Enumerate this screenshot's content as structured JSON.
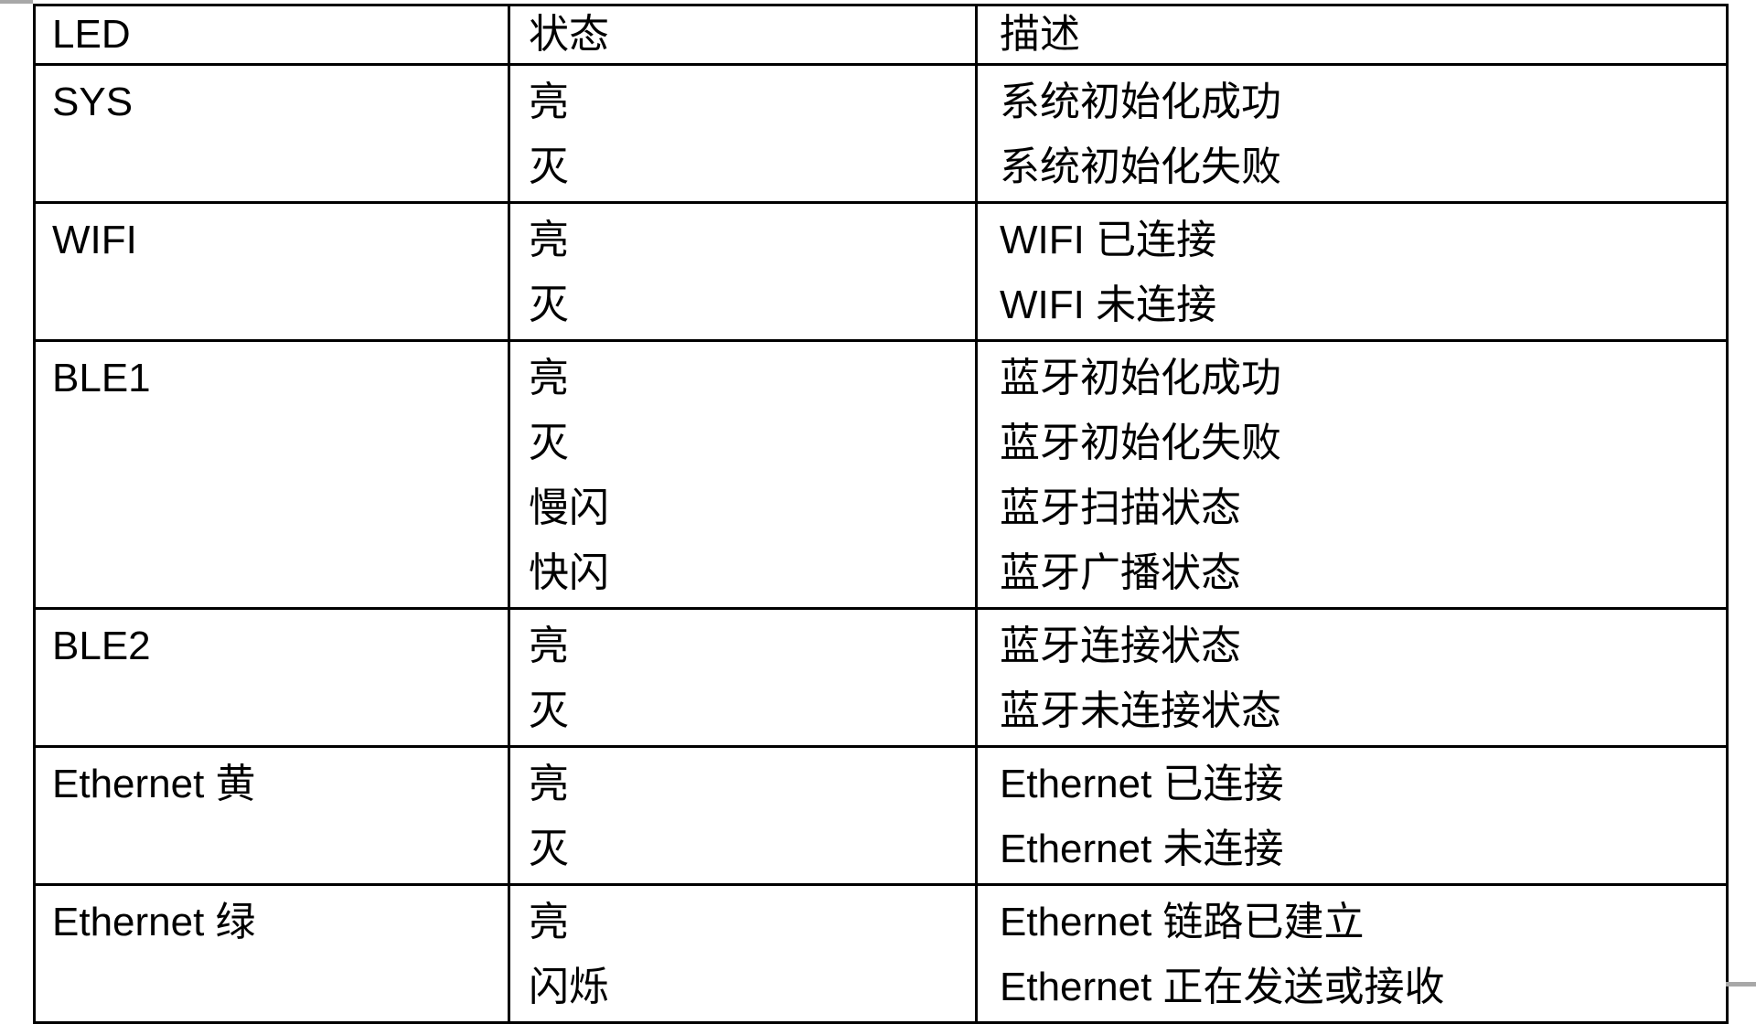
{
  "page": {
    "background": "#ffffff",
    "border_color": "#000000",
    "fragment_color": "#a8a8a8"
  },
  "table": {
    "header": {
      "led": "LED",
      "status": "状态",
      "description": "描述"
    },
    "rows": [
      {
        "led": "SYS",
        "entries": [
          {
            "status": "亮",
            "description": "系统初始化成功"
          },
          {
            "status": "灭",
            "description": "系统初始化失败"
          }
        ]
      },
      {
        "led": "WIFI",
        "entries": [
          {
            "status": "亮",
            "description": "WIFI 已连接"
          },
          {
            "status": "灭",
            "description": "WIFI 未连接"
          }
        ]
      },
      {
        "led": "BLE1",
        "entries": [
          {
            "status": "亮",
            "description": "蓝牙初始化成功"
          },
          {
            "status": "灭",
            "description": "蓝牙初始化失败"
          },
          {
            "status": "慢闪",
            "description": "蓝牙扫描状态"
          },
          {
            "status": "快闪",
            "description": "蓝牙广播状态"
          }
        ]
      },
      {
        "led": "BLE2",
        "entries": [
          {
            "status": "亮",
            "description": "蓝牙连接状态"
          },
          {
            "status": "灭",
            "description": "蓝牙未连接状态"
          }
        ]
      },
      {
        "led": "Ethernet 黄",
        "entries": [
          {
            "status": "亮",
            "description": "Ethernet  已连接"
          },
          {
            "status": "灭",
            "description": "Ethernet  未连接"
          }
        ]
      },
      {
        "led": "Ethernet 绿",
        "entries": [
          {
            "status": "亮",
            "description": "Ethernet  链路已建立"
          },
          {
            "status": "闪烁",
            "description": "Ethernet  正在发送或接收"
          }
        ]
      }
    ]
  }
}
